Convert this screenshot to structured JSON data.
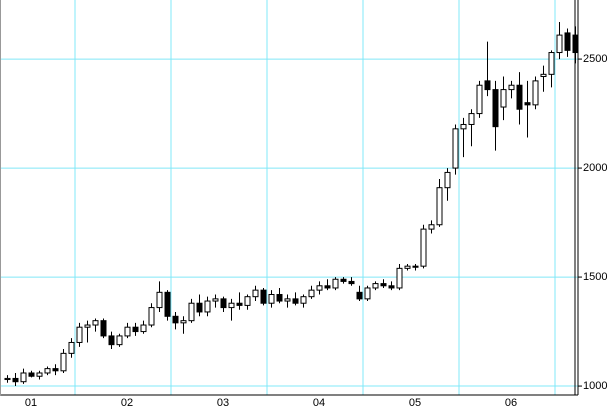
{
  "chart_data": {
    "type": "candlestick",
    "categories": [
      null,
      null,
      null,
      "01",
      null,
      null,
      null,
      null,
      null,
      null,
      null,
      null,
      null,
      null,
      null,
      "02",
      null,
      null,
      null,
      null,
      null,
      null,
      null,
      null,
      null,
      null,
      null,
      "03",
      null,
      null,
      null,
      null,
      null,
      null,
      null,
      null,
      null,
      null,
      null,
      "04",
      null,
      null,
      null,
      null,
      null,
      null,
      null,
      null,
      null,
      null,
      null,
      "05",
      null,
      null,
      null,
      null,
      null,
      null,
      null,
      null,
      null,
      null,
      null,
      "06",
      null,
      null,
      null,
      null,
      null,
      null,
      null,
      null
    ],
    "open": [
      1030,
      1035,
      1020,
      1060,
      1045,
      1060,
      1080,
      1070,
      1150,
      1200,
      1270,
      1280,
      1300,
      1230,
      1190,
      1230,
      1270,
      1250,
      1280,
      1360,
      1430,
      1320,
      1290,
      1300,
      1380,
      1340,
      1390,
      1400,
      1360,
      1380,
      1370,
      1410,
      1440,
      1380,
      1420,
      1390,
      1400,
      1380,
      1410,
      1440,
      1460,
      1450,
      1490,
      1480,
      1430,
      1400,
      1450,
      1470,
      1460,
      1450,
      1540,
      1550,
      1550,
      1720,
      1740,
      1910,
      2000,
      2180,
      2200,
      2250,
      2400,
      2360,
      2280,
      2360,
      2380,
      2300,
      2290,
      2420,
      2430,
      2530,
      2620,
      2610
    ],
    "high": [
      1050,
      1060,
      1080,
      1070,
      1070,
      1090,
      1100,
      1170,
      1220,
      1290,
      1300,
      1310,
      1310,
      1250,
      1240,
      1290,
      1290,
      1300,
      1380,
      1480,
      1440,
      1340,
      1320,
      1400,
      1420,
      1410,
      1420,
      1410,
      1400,
      1430,
      1420,
      1460,
      1450,
      1440,
      1450,
      1420,
      1430,
      1420,
      1460,
      1480,
      1490,
      1500,
      1500,
      1500,
      1460,
      1460,
      1480,
      1490,
      1480,
      1560,
      1560,
      1560,
      1740,
      1760,
      1950,
      2000,
      2200,
      2230,
      2270,
      2400,
      2580,
      2400,
      2420,
      2400,
      2440,
      2400,
      2420,
      2470,
      2540,
      2670,
      2640,
      2650
    ],
    "low": [
      1015,
      1000,
      1010,
      1040,
      1030,
      1050,
      1050,
      1060,
      1130,
      1180,
      1200,
      1250,
      1220,
      1170,
      1180,
      1220,
      1230,
      1240,
      1270,
      1340,
      1300,
      1260,
      1240,
      1290,
      1320,
      1320,
      1360,
      1340,
      1300,
      1350,
      1350,
      1390,
      1370,
      1360,
      1380,
      1360,
      1370,
      1360,
      1400,
      1420,
      1440,
      1440,
      1470,
      1460,
      1390,
      1390,
      1440,
      1450,
      1440,
      1440,
      1530,
      1530,
      1540,
      1700,
      1730,
      1850,
      1970,
      2050,
      2100,
      2230,
      2330,
      2080,
      2220,
      2320,
      2200,
      2140,
      2270,
      2350,
      2370,
      2500,
      2510,
      2480
    ],
    "close": [
      1035,
      1020,
      1060,
      1045,
      1060,
      1080,
      1070,
      1150,
      1200,
      1270,
      1280,
      1300,
      1230,
      1190,
      1230,
      1270,
      1250,
      1280,
      1360,
      1430,
      1320,
      1290,
      1300,
      1380,
      1340,
      1390,
      1400,
      1360,
      1380,
      1370,
      1410,
      1440,
      1380,
      1420,
      1390,
      1400,
      1380,
      1410,
      1440,
      1460,
      1450,
      1490,
      1480,
      1470,
      1400,
      1450,
      1470,
      1460,
      1450,
      1540,
      1550,
      1545,
      1720,
      1740,
      1910,
      1980,
      2180,
      2200,
      2250,
      2380,
      2360,
      2190,
      2360,
      2380,
      2270,
      2290,
      2400,
      2430,
      2530,
      2610,
      2540,
      2530
    ],
    "up_color": "#ffffff",
    "down_color": "#000000",
    "grid_color": "#80e8f8",
    "ylim": [
      959,
      2771
    ],
    "yticks": [
      1000,
      1500,
      2000,
      2500
    ],
    "grid": true
  }
}
